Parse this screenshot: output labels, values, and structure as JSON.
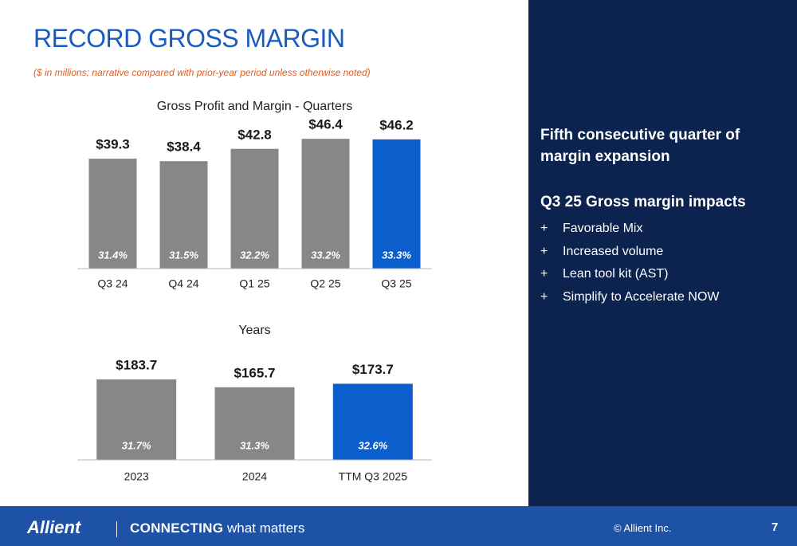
{
  "header": {
    "title": "RECORD GROSS MARGIN",
    "subtitle": "($ in millions; narrative compared with prior-year period unless otherwise noted)"
  },
  "chart_data": [
    {
      "type": "bar",
      "title": "Gross Profit and Margin - Quarters",
      "categories": [
        "Q3 24",
        "Q4 24",
        "Q1 25",
        "Q2 25",
        "Q3 25"
      ],
      "values": [
        39.3,
        38.4,
        42.8,
        46.4,
        46.2
      ],
      "value_labels": [
        "$39.3",
        "$38.4",
        "$42.8",
        "$46.4",
        "$46.2"
      ],
      "margins": [
        31.4,
        31.5,
        32.2,
        33.2,
        33.3
      ],
      "margin_labels": [
        "31.4%",
        "31.5%",
        "32.2%",
        "33.2%",
        "33.3%"
      ],
      "colors": [
        "#878787",
        "#878787",
        "#878787",
        "#878787",
        "#0a5fcc"
      ],
      "ylim": [
        0,
        50
      ]
    },
    {
      "type": "bar",
      "title": "Years",
      "categories": [
        "2023",
        "2024",
        "TTM Q3 2025"
      ],
      "values": [
        183.7,
        165.7,
        173.7
      ],
      "value_labels": [
        "$183.7",
        "$165.7",
        "$173.7"
      ],
      "margins": [
        31.7,
        31.3,
        32.6
      ],
      "margin_labels": [
        "31.7%",
        "31.3%",
        "32.6%"
      ],
      "colors": [
        "#878787",
        "#878787",
        "#0a5fcc"
      ],
      "ylim": [
        0,
        200
      ]
    }
  ],
  "sidebar": {
    "headline": "Fifth consecutive quarter of margin expansion",
    "subhead": "Q3 25 Gross margin impacts",
    "items": [
      {
        "marker": "+",
        "text": "Favorable Mix"
      },
      {
        "marker": "+",
        "text": "Increased volume"
      },
      {
        "marker": "+",
        "text": "Lean tool kit (AST)"
      },
      {
        "marker": "+",
        "text": "Simplify to Accelerate NOW"
      }
    ]
  },
  "footer": {
    "logo": "Allient",
    "tagline_strong": "CONNECTING",
    "tagline_rest": "what matters",
    "copyright": "© Allient Inc.",
    "page": "7"
  }
}
